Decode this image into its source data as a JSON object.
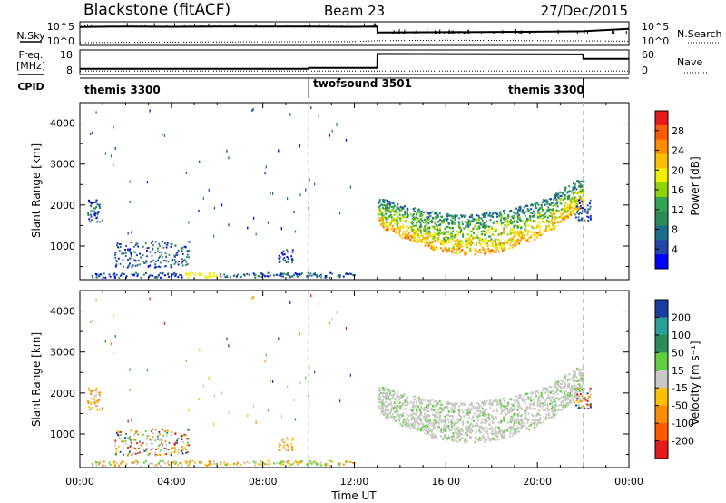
{
  "header": {
    "station": "Blackstone (fitACF)",
    "beam": "Beam 23",
    "date": "27/Dec/2015"
  },
  "summary": {
    "nsky_label": "N.Sky",
    "nsearch_label": "N.Search",
    "freq_label": "Freq.",
    "freq_unit": "[MHz]",
    "nave_label": "Nave",
    "cpid_label": "CPID",
    "noise_ticks": [
      "10^5",
      "10^0"
    ],
    "freq_ticks": [
      "18",
      "8"
    ],
    "nave_ticks": [
      "60",
      "0"
    ]
  },
  "cpid": {
    "segments": [
      {
        "name": "themis 3300",
        "start": 0.0,
        "end": 10.0
      },
      {
        "name": "twofsound 3501",
        "start": 10.0,
        "end": 22.0
      },
      {
        "name": "themis 3300",
        "start": 22.0,
        "end": 24.0
      }
    ],
    "text_labels": [
      "themis 3300",
      "twofsound 3501",
      "themis 3300"
    ]
  },
  "axes": {
    "ylabel": "Slant Range [km]",
    "xlabel": "Time UT",
    "xticks": [
      "00:00",
      "04:00",
      "08:00",
      "12:00",
      "16:00",
      "20:00",
      "00:00"
    ],
    "yticks": [
      "1000",
      "2000",
      "3000",
      "4000"
    ]
  },
  "power_colorbar": {
    "label": "Power [dB]",
    "ticks": [
      "28",
      "24",
      "20",
      "16",
      "12",
      "8",
      "4"
    ],
    "colors": [
      "#e41a1c",
      "#ff5a00",
      "#ff8c00",
      "#ffc000",
      "#f0f000",
      "#8fd300",
      "#31a354",
      "#2e8b57",
      "#1b6f8a",
      "#2244aa",
      "#0000ff"
    ]
  },
  "velocity_colorbar": {
    "label": "Velocity [m s⁻¹]",
    "ticks": [
      "200",
      "100",
      "50",
      "15",
      "-15",
      "-50",
      "-100",
      "-200"
    ],
    "colors": [
      "#1a3fa0",
      "#2aa198",
      "#2e8b57",
      "#60d040",
      "#c8c8c4",
      "#ffc000",
      "#ff8c00",
      "#ff5a00",
      "#e41a1c"
    ]
  },
  "chart_data": {
    "type": "heatmap",
    "x_unit": "hours UT",
    "xlim": [
      0,
      24
    ],
    "ylim": [
      180,
      4500
    ],
    "noise_sky": {
      "x": [
        0,
        2,
        4,
        6,
        8,
        10,
        12,
        13,
        13.01,
        16,
        20,
        22,
        24
      ],
      "values": [
        0.78,
        0.8,
        0.79,
        0.8,
        0.8,
        0.8,
        0.79,
        0.8,
        0.55,
        0.56,
        0.58,
        0.6,
        0.7
      ]
    },
    "noise_search": {
      "x": [
        0,
        4,
        8,
        12,
        13,
        16,
        20,
        24
      ],
      "values": [
        0.12,
        0.14,
        0.15,
        0.16,
        0.2,
        0.22,
        0.2,
        0.18
      ]
    },
    "frequency": {
      "x": [
        0,
        10,
        10.01,
        13,
        13.01,
        22,
        22.01,
        24
      ],
      "values": [
        10.2,
        10.2,
        10.6,
        10.6,
        17.0,
        16.8,
        14.8,
        14.8
      ]
    },
    "nave": {
      "x": [
        0,
        10,
        13,
        22,
        24
      ],
      "values": [
        7,
        7,
        7,
        7,
        7
      ]
    },
    "regions": [
      {
        "name": "power-patch-1",
        "t": [
          0.3,
          0.8
        ],
        "r": [
          1500,
          2100
        ],
        "level": "low"
      },
      {
        "name": "power-patch-2",
        "t": [
          1.5,
          4.8
        ],
        "r": [
          500,
          1100
        ],
        "level": "low"
      },
      {
        "name": "power-patch-3",
        "t": [
          8.6,
          9.3
        ],
        "r": [
          550,
          900
        ],
        "level": "low"
      },
      {
        "name": "power-arc",
        "t": [
          13.0,
          22.0
        ],
        "r": [
          700,
          2400
        ],
        "level": "high"
      },
      {
        "name": "ground-band",
        "t": [
          0.5,
          12.0
        ],
        "r": [
          180,
          320
        ],
        "level": "mixed"
      }
    ]
  }
}
